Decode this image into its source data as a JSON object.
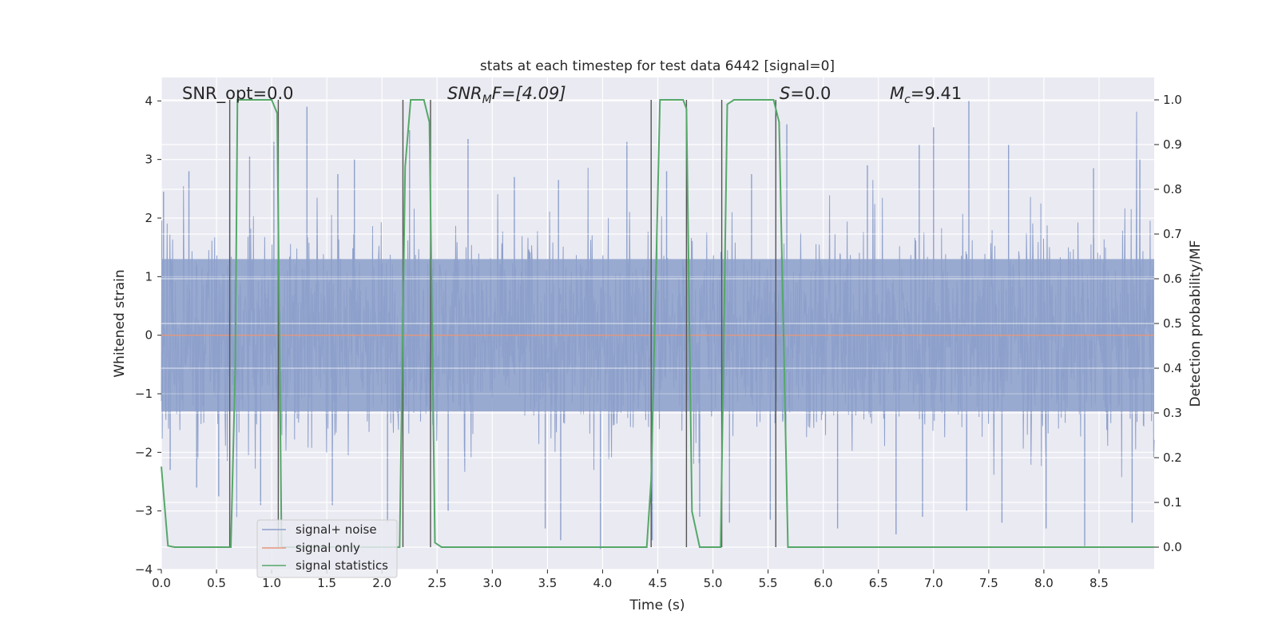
{
  "chart_data": {
    "type": "line",
    "title": "stats at each timestep for test data 6442 [signal=0]",
    "xlabel": "Time (s)",
    "ylabel_left": "Whitened strain",
    "ylabel_right": "Detection probability/MF",
    "xlim": [
      0.0,
      9.0
    ],
    "ylim_left": [
      -4.0,
      4.4
    ],
    "ylim_right": [
      -0.05,
      1.05
    ],
    "x_ticks": [
      0.0,
      0.5,
      1.0,
      1.5,
      2.0,
      2.5,
      3.0,
      3.5,
      4.0,
      4.5,
      5.0,
      5.5,
      6.0,
      6.5,
      7.0,
      7.5,
      8.0,
      8.5
    ],
    "x_tick_labels": [
      "0.0",
      "0.5",
      "1.0",
      "1.5",
      "2.0",
      "2.5",
      "3.0",
      "3.5",
      "4.0",
      "4.5",
      "5.0",
      "5.5",
      "6.0",
      "6.5",
      "7.0",
      "7.5",
      "8.0",
      "8.5"
    ],
    "y_left_ticks": [
      -4,
      -3,
      -2,
      -1,
      0,
      1,
      2,
      3,
      4
    ],
    "y_left_tick_labels": [
      "−4",
      "−3",
      "−2",
      "−1",
      "0",
      "1",
      "2",
      "3",
      "4"
    ],
    "y_right_ticks": [
      0.0,
      0.1,
      0.2,
      0.3,
      0.4,
      0.5,
      0.6,
      0.7,
      0.8,
      0.9,
      1.0
    ],
    "y_right_tick_labels": [
      "0.0",
      "0.1",
      "0.2",
      "0.3",
      "0.4",
      "0.5",
      "0.6",
      "0.7",
      "0.8",
      "0.9",
      "1.0"
    ],
    "grid": true,
    "annotations": {
      "snr_opt": "SNR_opt=0.0",
      "snr_mf_sym": "SNR",
      "snr_mf_sub": "M",
      "snr_mf_rest": "F=[4.09]",
      "s_sym": "S",
      "s_rest": "=0.0",
      "mc_sym": "M",
      "mc_sub": "c",
      "mc_rest": "=9.41"
    },
    "legend": {
      "placement": "lower-left",
      "entries": [
        "signal+ noise",
        "signal only",
        "signal statistics"
      ]
    },
    "series": [
      {
        "name": "signal+ noise",
        "axis": "left",
        "color": "#8da0cb",
        "kind": "noise",
        "band_upper": 1.3,
        "band_lower": -1.3,
        "peaks_up": [
          [
            0.02,
            2.45
          ],
          [
            0.25,
            2.8
          ],
          [
            0.62,
            2.5
          ],
          [
            0.8,
            3.05
          ],
          [
            1.02,
            3.3
          ],
          [
            1.32,
            3.9
          ],
          [
            1.6,
            2.75
          ],
          [
            1.75,
            3.0
          ],
          [
            2.25,
            3.5
          ],
          [
            2.78,
            3.35
          ],
          [
            3.2,
            2.7
          ],
          [
            3.6,
            2.65
          ],
          [
            4.22,
            3.3
          ],
          [
            4.58,
            2.8
          ],
          [
            5.35,
            2.75
          ],
          [
            5.67,
            3.6
          ],
          [
            6.4,
            2.9
          ],
          [
            6.87,
            3.25
          ],
          [
            7.0,
            3.55
          ],
          [
            7.32,
            4.0
          ],
          [
            7.68,
            3.25
          ],
          [
            8.45,
            2.85
          ],
          [
            8.87,
            3.0
          ]
        ],
        "peaks_down": [
          [
            0.08,
            -2.3
          ],
          [
            0.32,
            -2.6
          ],
          [
            0.52,
            -2.75
          ],
          [
            0.9,
            -2.9
          ],
          [
            1.55,
            -2.9
          ],
          [
            2.05,
            -3.2
          ],
          [
            2.6,
            -3.0
          ],
          [
            3.48,
            -3.3
          ],
          [
            3.62,
            -3.5
          ],
          [
            3.98,
            -3.65
          ],
          [
            4.45,
            -3.5
          ],
          [
            4.88,
            -3.1
          ],
          [
            5.15,
            -3.2
          ],
          [
            5.52,
            -3.15
          ],
          [
            6.13,
            -3.3
          ],
          [
            6.66,
            -3.4
          ],
          [
            6.9,
            -3.1
          ],
          [
            7.3,
            -3.0
          ],
          [
            7.62,
            -3.2
          ],
          [
            8.02,
            -3.3
          ],
          [
            8.37,
            -3.6
          ],
          [
            8.8,
            -3.2
          ]
        ]
      },
      {
        "name": "signal only",
        "axis": "left",
        "color": "#e5967a",
        "x": [
          0.0,
          9.0
        ],
        "y": [
          0.0,
          0.0
        ]
      },
      {
        "name": "signal statistics",
        "axis": "right",
        "color": "#55a868",
        "x": [
          0.0,
          0.06,
          0.12,
          0.63,
          0.67,
          0.69,
          0.72,
          1.0,
          1.05,
          1.09,
          2.16,
          2.21,
          2.26,
          2.38,
          2.43,
          2.48,
          2.54,
          4.4,
          4.44,
          4.52,
          4.73,
          4.76,
          4.81,
          4.88,
          5.07,
          5.13,
          5.19,
          5.55,
          5.6,
          5.68,
          9.0
        ],
        "y": [
          0.18,
          0.003,
          0.0,
          0.0,
          0.4,
          1.0,
          1.0,
          1.0,
          0.97,
          0.0,
          0.0,
          0.85,
          1.0,
          1.0,
          0.95,
          0.01,
          0.0,
          0.0,
          0.15,
          1.0,
          1.0,
          0.98,
          0.08,
          0.0,
          0.0,
          0.99,
          1.0,
          1.0,
          0.95,
          0.0,
          0.0
        ]
      }
    ],
    "vlines": [
      0.62,
      1.06,
      2.19,
      2.44,
      4.44,
      4.76,
      5.08,
      5.57
    ]
  }
}
